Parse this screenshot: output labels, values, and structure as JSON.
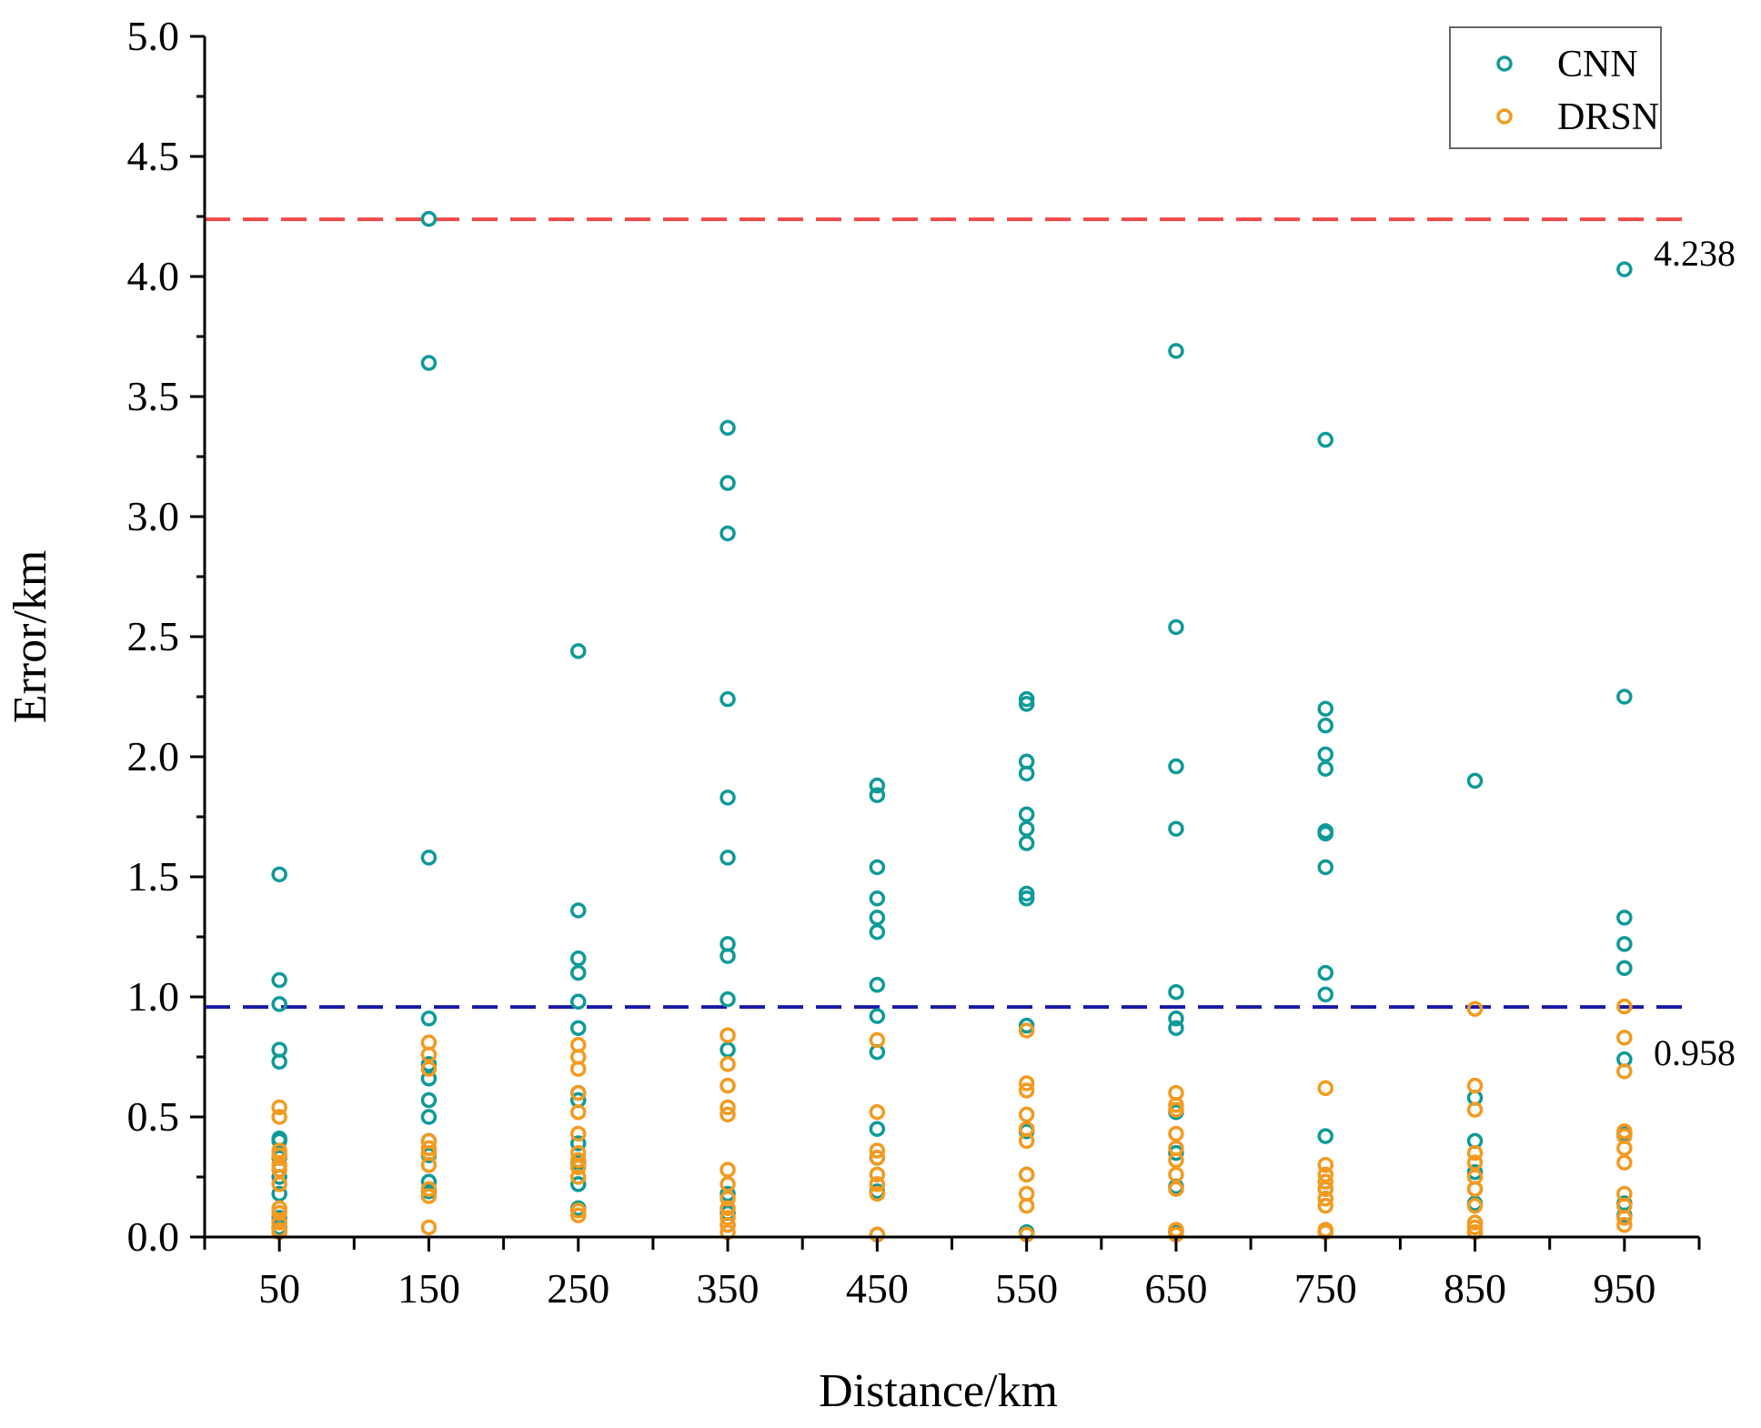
{
  "chart_data": {
    "type": "scatter",
    "title": "",
    "xlabel": "Distance/km",
    "ylabel": "Error/km",
    "xlim": [
      0,
      1000
    ],
    "ylim": [
      0,
      5.0
    ],
    "x_ticks": [
      50,
      150,
      250,
      350,
      450,
      550,
      650,
      750,
      850,
      950
    ],
    "x_tick_labels": [
      "50",
      "150",
      "250",
      "350",
      "450",
      "550",
      "650",
      "750",
      "850",
      "950"
    ],
    "y_ticks": [
      0.0,
      0.5,
      1.0,
      1.5,
      2.0,
      2.5,
      3.0,
      3.5,
      4.0,
      4.5,
      5.0
    ],
    "y_tick_labels": [
      "0.0",
      "0.5",
      "1.0",
      "1.5",
      "2.0",
      "2.5",
      "3.0",
      "3.5",
      "4.0",
      "4.5",
      "5.0"
    ],
    "grid": false,
    "legend_position": "top-right",
    "series": [
      {
        "name": "CNN",
        "color": "#0e9a98",
        "x": [
          50,
          50,
          50,
          50,
          50,
          50,
          50,
          50,
          50,
          50,
          50,
          50,
          150,
          150,
          150,
          150,
          150,
          150,
          150,
          150,
          150,
          150,
          150,
          150,
          250,
          250,
          250,
          250,
          250,
          250,
          250,
          250,
          250,
          250,
          250,
          250,
          350,
          350,
          350,
          350,
          350,
          350,
          350,
          350,
          350,
          350,
          350,
          350,
          350,
          450,
          450,
          450,
          450,
          450,
          450,
          450,
          450,
          450,
          450,
          450,
          450,
          450,
          550,
          550,
          550,
          550,
          550,
          550,
          550,
          550,
          550,
          550,
          550,
          550,
          550,
          650,
          650,
          650,
          650,
          650,
          650,
          650,
          650,
          650,
          650,
          650,
          750,
          750,
          750,
          750,
          750,
          750,
          750,
          750,
          750,
          750,
          750,
          750,
          750,
          850,
          850,
          850,
          850,
          850,
          850,
          850,
          950,
          950,
          950,
          950,
          950,
          950,
          950,
          950,
          950
        ],
        "y": [
          1.51,
          1.07,
          0.97,
          0.78,
          0.73,
          0.41,
          0.4,
          0.33,
          0.25,
          0.18,
          0.08,
          0.04,
          4.24,
          3.64,
          1.58,
          0.91,
          0.72,
          0.66,
          0.57,
          0.5,
          0.4,
          0.34,
          0.23,
          0.19,
          2.44,
          1.36,
          1.16,
          1.1,
          0.98,
          0.87,
          0.6,
          0.57,
          0.39,
          0.31,
          0.22,
          0.12,
          3.37,
          3.14,
          2.93,
          2.24,
          1.83,
          1.58,
          1.22,
          1.17,
          0.99,
          0.78,
          0.18,
          0.1,
          0.05,
          1.88,
          1.84,
          1.54,
          1.41,
          1.33,
          1.27,
          1.05,
          0.92,
          0.77,
          0.45,
          0.33,
          0.19,
          0.01,
          2.24,
          2.22,
          1.98,
          1.93,
          1.76,
          1.7,
          1.64,
          1.43,
          1.41,
          0.88,
          0.44,
          0.26,
          0.02,
          3.69,
          2.54,
          1.96,
          1.7,
          1.02,
          0.91,
          0.87,
          0.52,
          0.35,
          0.21,
          0.02,
          3.32,
          2.2,
          2.13,
          2.01,
          1.95,
          1.69,
          1.68,
          1.54,
          1.1,
          1.01,
          0.42,
          0.2,
          0.02,
          1.9,
          0.58,
          0.4,
          0.27,
          0.2,
          0.14,
          0.02,
          4.03,
          2.25,
          1.33,
          1.22,
          1.12,
          0.74,
          0.43,
          0.14,
          0.09
        ]
      },
      {
        "name": "DRSN",
        "color": "#f39a1f",
        "x": [
          50,
          50,
          50,
          50,
          50,
          50,
          50,
          50,
          50,
          50,
          50,
          50,
          150,
          150,
          150,
          150,
          150,
          150,
          150,
          150,
          150,
          150,
          250,
          250,
          250,
          250,
          250,
          250,
          250,
          250,
          250,
          250,
          250,
          250,
          350,
          350,
          350,
          350,
          350,
          350,
          350,
          350,
          350,
          350,
          350,
          350,
          450,
          450,
          450,
          450,
          450,
          450,
          450,
          450,
          550,
          550,
          550,
          550,
          550,
          550,
          550,
          550,
          550,
          550,
          650,
          650,
          650,
          650,
          650,
          650,
          650,
          650,
          650,
          650,
          750,
          750,
          750,
          750,
          750,
          750,
          750,
          750,
          750,
          850,
          850,
          850,
          850,
          850,
          850,
          850,
          850,
          850,
          850,
          850,
          950,
          950,
          950,
          950,
          950,
          950,
          950,
          950,
          950,
          950,
          950
        ],
        "y": [
          0.54,
          0.5,
          0.36,
          0.34,
          0.3,
          0.28,
          0.22,
          0.12,
          0.1,
          0.06,
          0.03,
          0.02,
          0.81,
          0.76,
          0.7,
          0.4,
          0.37,
          0.35,
          0.3,
          0.2,
          0.17,
          0.04,
          0.8,
          0.75,
          0.7,
          0.6,
          0.52,
          0.43,
          0.35,
          0.32,
          0.29,
          0.25,
          0.11,
          0.09,
          0.84,
          0.72,
          0.63,
          0.54,
          0.51,
          0.28,
          0.22,
          0.16,
          0.12,
          0.08,
          0.05,
          0.02,
          0.82,
          0.52,
          0.36,
          0.33,
          0.26,
          0.22,
          0.18,
          0.01,
          0.86,
          0.64,
          0.61,
          0.51,
          0.45,
          0.4,
          0.26,
          0.18,
          0.13,
          0.01,
          0.6,
          0.55,
          0.53,
          0.43,
          0.37,
          0.32,
          0.26,
          0.2,
          0.03,
          0.01,
          0.62,
          0.3,
          0.26,
          0.23,
          0.2,
          0.16,
          0.13,
          0.03,
          0.02,
          0.95,
          0.63,
          0.53,
          0.35,
          0.31,
          0.25,
          0.2,
          0.13,
          0.06,
          0.04,
          0.02,
          0.96,
          0.83,
          0.69,
          0.44,
          0.42,
          0.37,
          0.31,
          0.18,
          0.13,
          0.08,
          0.05
        ]
      }
    ],
    "reference_lines": [
      {
        "y": 4.238,
        "color": "#ef4a4a",
        "label": "4.238"
      },
      {
        "y": 0.958,
        "color": "#1a1aa6",
        "label": "0.958"
      }
    ]
  }
}
